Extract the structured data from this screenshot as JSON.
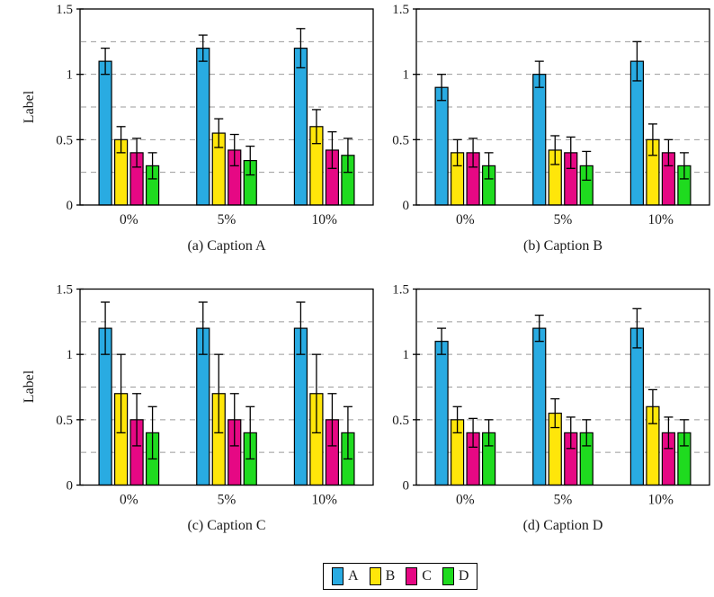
{
  "style": {
    "background": "#ffffff",
    "axis_color": "#000000",
    "grid_color": "#9b9b9b",
    "error_bar_color": "#000000",
    "text_color": "#1a1a1a"
  },
  "legend": {
    "position": "bottom-center",
    "border": true,
    "entries": [
      {
        "label": "A",
        "color": "#29ABE2"
      },
      {
        "label": "B",
        "color": "#FFE60A"
      },
      {
        "label": "C",
        "color": "#E60884"
      },
      {
        "label": "D",
        "color": "#1FDB1F"
      }
    ]
  },
  "chart_data": [
    {
      "type": "bar",
      "caption": "(a) Caption A",
      "ylabel": "Label",
      "categories": [
        "0%",
        "5%",
        "10%"
      ],
      "ylim": [
        0,
        1.5
      ],
      "yticks": [
        {
          "value": 0,
          "label": "0"
        },
        {
          "value": 0.5,
          "label": "0.5"
        },
        {
          "value": 1,
          "label": "1"
        },
        {
          "value": 1.5,
          "label": "1.5"
        }
      ],
      "gridlines": [
        0.25,
        0.5,
        0.75,
        1,
        1.25
      ],
      "grid_style": "dashed",
      "series": [
        {
          "name": "A",
          "color": "#29ABE2",
          "values": [
            1.1,
            1.2,
            1.2
          ],
          "errors": [
            0.1,
            0.1,
            0.15
          ]
        },
        {
          "name": "B",
          "color": "#FFE60A",
          "values": [
            0.5,
            0.55,
            0.6
          ],
          "errors": [
            0.1,
            0.11,
            0.13
          ]
        },
        {
          "name": "C",
          "color": "#E60884",
          "values": [
            0.4,
            0.42,
            0.42
          ],
          "errors": [
            0.11,
            0.12,
            0.14
          ]
        },
        {
          "name": "D",
          "color": "#1FDB1F",
          "values": [
            0.3,
            0.34,
            0.38
          ],
          "errors": [
            0.1,
            0.11,
            0.13
          ]
        }
      ]
    },
    {
      "type": "bar",
      "caption": "(b) Caption B",
      "categories": [
        "0%",
        "5%",
        "10%"
      ],
      "ylim": [
        0,
        1.5
      ],
      "yticks": [
        {
          "value": 0,
          "label": "0"
        },
        {
          "value": 0.5,
          "label": "0.5"
        },
        {
          "value": 1,
          "label": "1"
        },
        {
          "value": 1.5,
          "label": "1.5"
        }
      ],
      "gridlines": [
        0.25,
        0.5,
        0.75,
        1,
        1.25
      ],
      "grid_style": "dashed",
      "series": [
        {
          "name": "A",
          "color": "#29ABE2",
          "values": [
            0.9,
            1.0,
            1.1
          ],
          "errors": [
            0.1,
            0.1,
            0.15
          ]
        },
        {
          "name": "B",
          "color": "#FFE60A",
          "values": [
            0.4,
            0.42,
            0.5
          ],
          "errors": [
            0.1,
            0.11,
            0.12
          ]
        },
        {
          "name": "C",
          "color": "#E60884",
          "values": [
            0.4,
            0.4,
            0.4
          ],
          "errors": [
            0.11,
            0.12,
            0.1
          ]
        },
        {
          "name": "D",
          "color": "#1FDB1F",
          "values": [
            0.3,
            0.3,
            0.3
          ],
          "errors": [
            0.1,
            0.11,
            0.1
          ]
        }
      ]
    },
    {
      "type": "bar",
      "caption": "(c) Caption C",
      "ylabel": "Label",
      "categories": [
        "0%",
        "5%",
        "10%"
      ],
      "ylim": [
        0,
        1.5
      ],
      "yticks": [
        {
          "value": 0,
          "label": "0"
        },
        {
          "value": 0.5,
          "label": "0.5"
        },
        {
          "value": 1,
          "label": "1"
        },
        {
          "value": 1.5,
          "label": "1.5"
        }
      ],
      "gridlines": [
        0.25,
        0.5,
        0.75,
        1,
        1.25
      ],
      "grid_style": "dashed",
      "series": [
        {
          "name": "A",
          "color": "#29ABE2",
          "values": [
            1.2,
            1.2,
            1.2
          ],
          "errors": [
            0.2,
            0.2,
            0.2
          ]
        },
        {
          "name": "B",
          "color": "#FFE60A",
          "values": [
            0.7,
            0.7,
            0.7
          ],
          "errors": [
            0.3,
            0.3,
            0.3
          ]
        },
        {
          "name": "C",
          "color": "#E60884",
          "values": [
            0.5,
            0.5,
            0.5
          ],
          "errors": [
            0.2,
            0.2,
            0.2
          ]
        },
        {
          "name": "D",
          "color": "#1FDB1F",
          "values": [
            0.4,
            0.4,
            0.4
          ],
          "errors": [
            0.2,
            0.2,
            0.2
          ]
        }
      ]
    },
    {
      "type": "bar",
      "caption": "(d) Caption D",
      "categories": [
        "0%",
        "5%",
        "10%"
      ],
      "ylim": [
        0,
        1.5
      ],
      "yticks": [
        {
          "value": 0,
          "label": "0"
        },
        {
          "value": 0.5,
          "label": "0.5"
        },
        {
          "value": 1,
          "label": "1"
        },
        {
          "value": 1.5,
          "label": "1.5"
        }
      ],
      "gridlines": [
        0.25,
        0.5,
        0.75,
        1,
        1.25
      ],
      "grid_style": "dashed",
      "series": [
        {
          "name": "A",
          "color": "#29ABE2",
          "values": [
            1.1,
            1.2,
            1.2
          ],
          "errors": [
            0.1,
            0.1,
            0.15
          ]
        },
        {
          "name": "B",
          "color": "#FFE60A",
          "values": [
            0.5,
            0.55,
            0.6
          ],
          "errors": [
            0.1,
            0.11,
            0.13
          ]
        },
        {
          "name": "C",
          "color": "#E60884",
          "values": [
            0.4,
            0.4,
            0.4
          ],
          "errors": [
            0.11,
            0.12,
            0.12
          ]
        },
        {
          "name": "D",
          "color": "#1FDB1F",
          "values": [
            0.4,
            0.4,
            0.4
          ],
          "errors": [
            0.1,
            0.1,
            0.1
          ]
        }
      ]
    }
  ]
}
